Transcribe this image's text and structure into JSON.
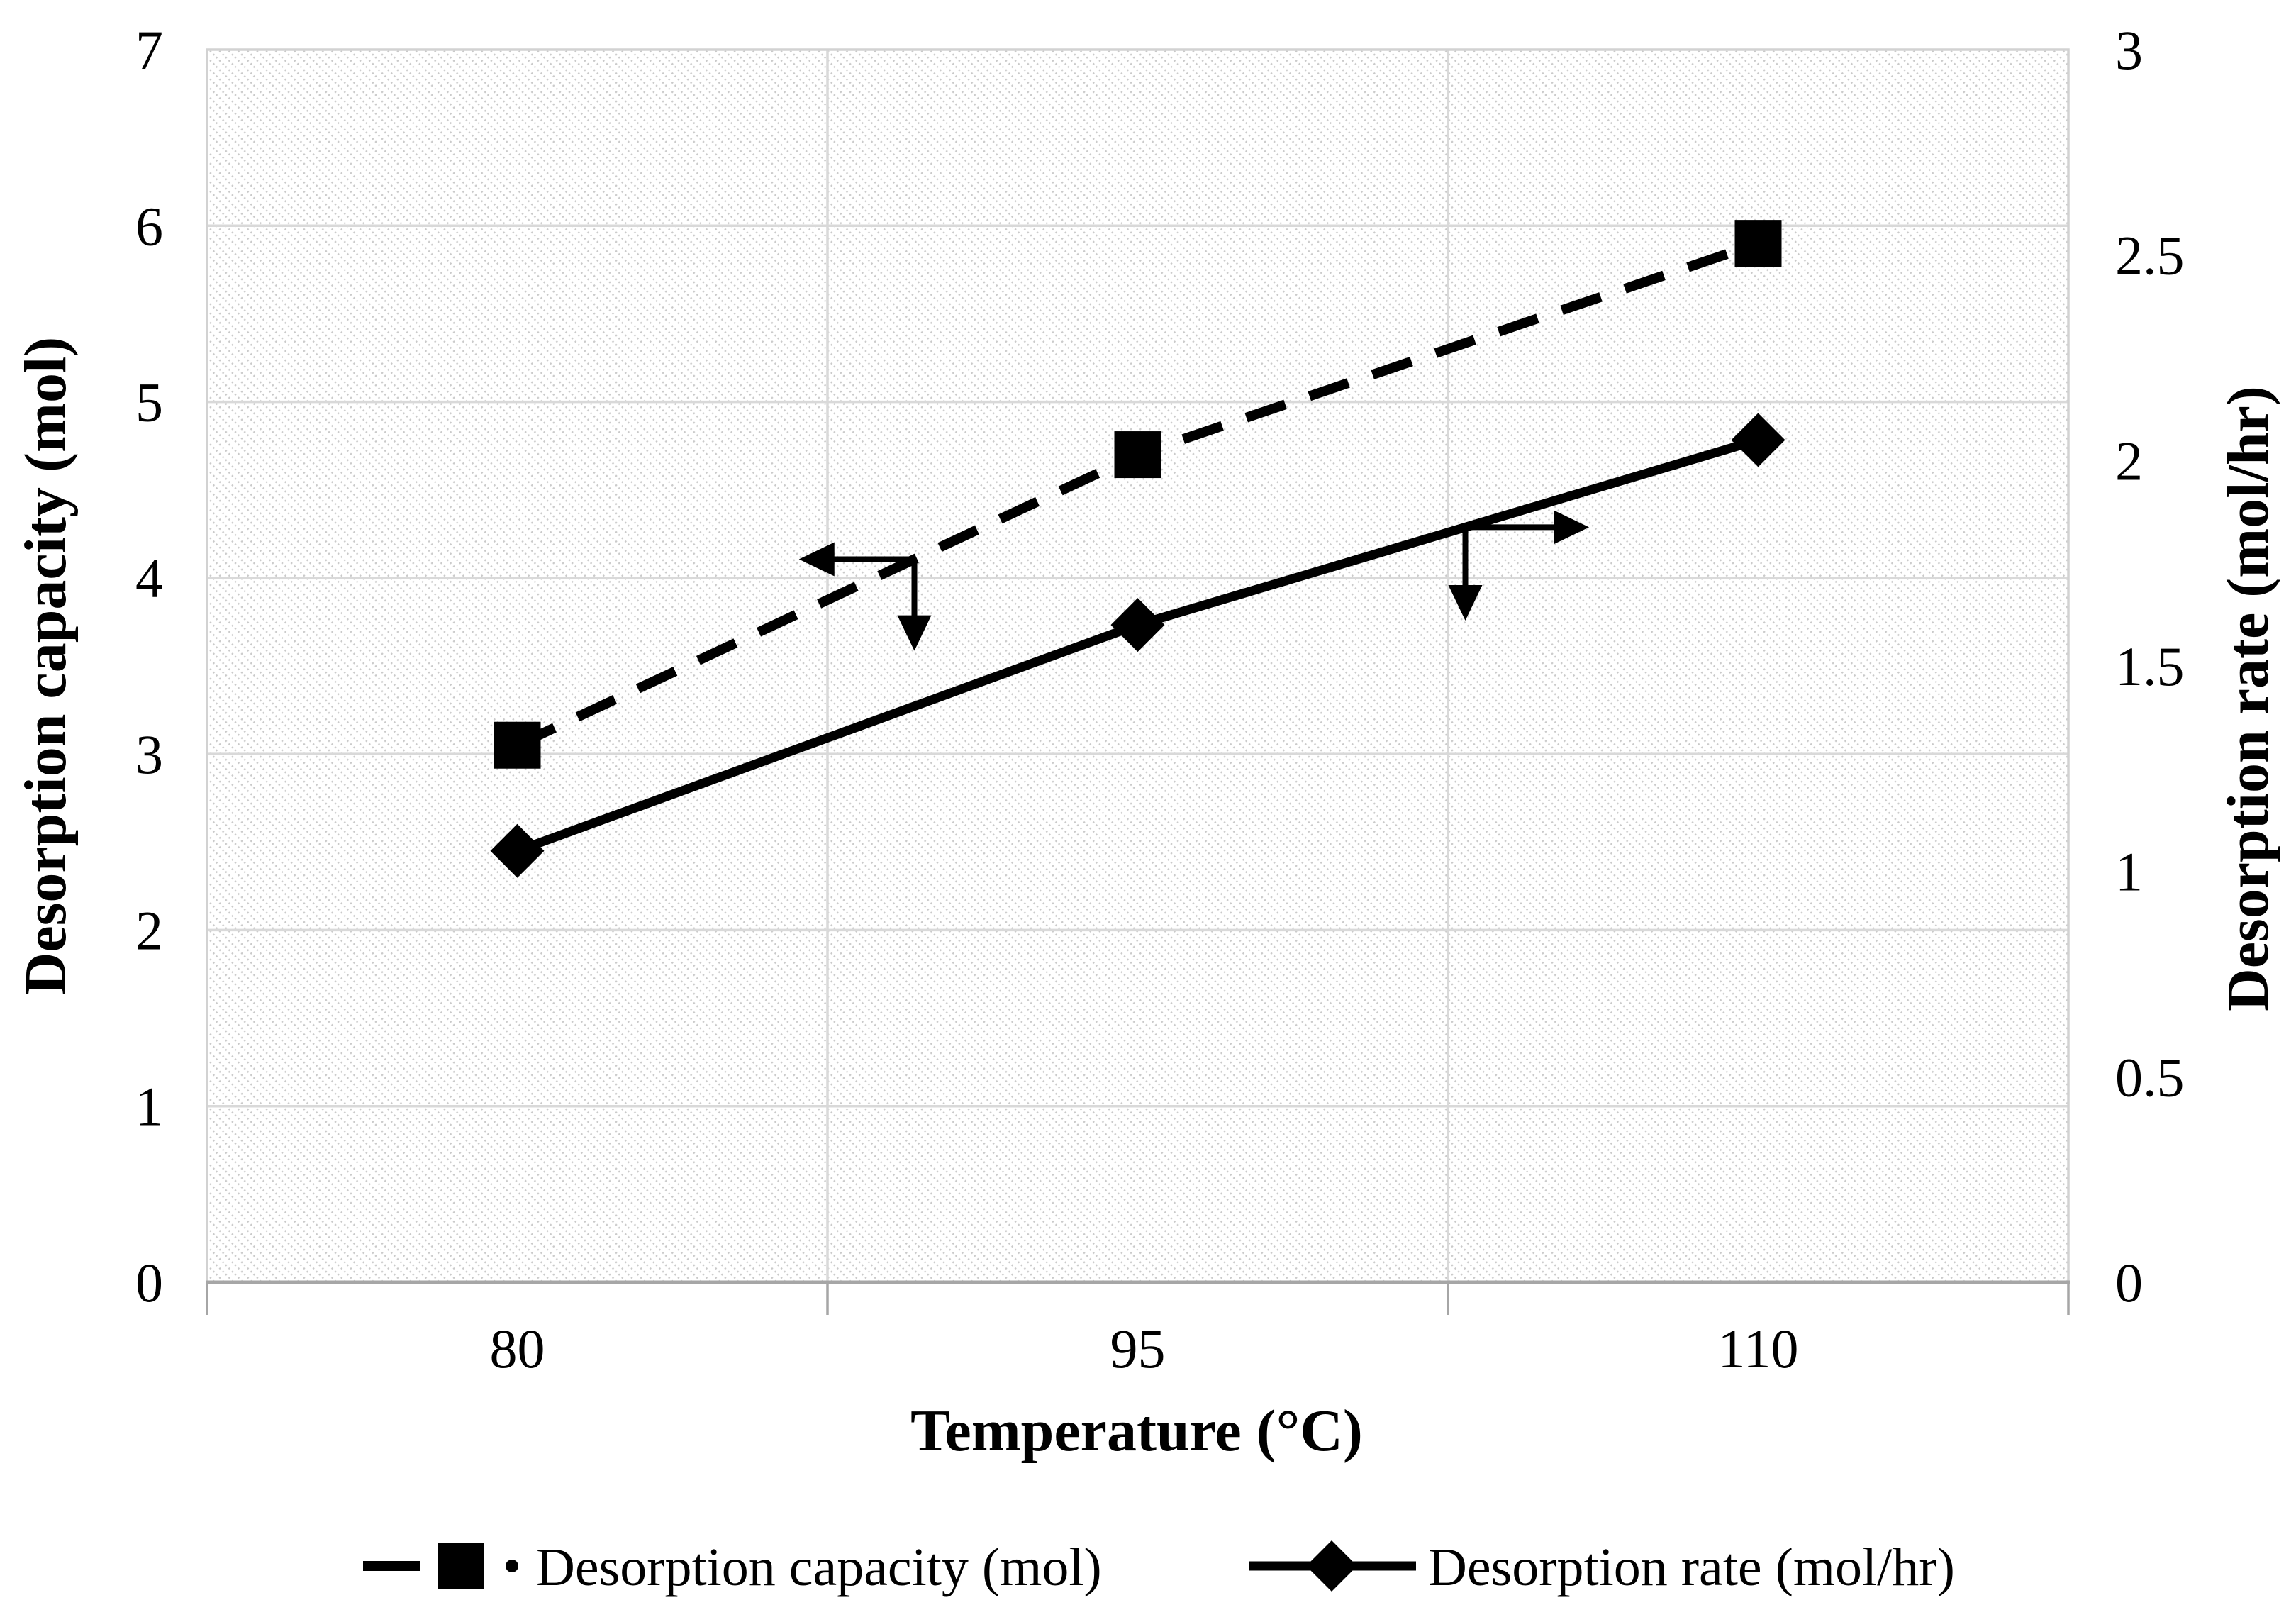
{
  "chart_data": {
    "type": "line",
    "title": "",
    "x_axis": {
      "label": "Temperature (°C)",
      "categories": [
        "80",
        "95",
        "110"
      ]
    },
    "left_axis": {
      "label": "Desorption capacity (mol)",
      "min": 0,
      "max": 7,
      "tick_step": 1,
      "tick_labels": [
        "0",
        "1",
        "2",
        "3",
        "4",
        "5",
        "6",
        "7"
      ]
    },
    "right_axis": {
      "label": "Desorption rate (mol/hr)",
      "min": 0,
      "max": 3,
      "tick_step": 0.5,
      "tick_labels": [
        "0",
        "0.5",
        "1",
        "1.5",
        "2",
        "2.5",
        "3"
      ]
    },
    "series": [
      {
        "name": "Desorption capacity (mol)",
        "axis": "left",
        "marker": "square",
        "line_style": "dashed",
        "color": "#000000",
        "x": [
          80,
          95,
          110
        ],
        "values": [
          3.05,
          4.7,
          5.9
        ]
      },
      {
        "name": "Desorption rate (mol/hr)",
        "axis": "right",
        "marker": "diamond",
        "line_style": "solid",
        "color": "#000000",
        "x": [
          80,
          95,
          110
        ],
        "values": [
          1.05,
          1.6,
          2.05
        ]
      }
    ],
    "annotations": [
      {
        "type": "axis-pointer-arrow",
        "series_index": 0,
        "points_to": "left-axis",
        "x_frac": 0.38,
        "h_len_frac": 0.062,
        "v_drop_axis_units": 0.52
      },
      {
        "type": "axis-pointer-arrow",
        "series_index": 1,
        "points_to": "right-axis",
        "x_frac": 0.676,
        "h_len_frac": 0.0665,
        "v_drop_axis_units": 0.53
      }
    ],
    "legend": {
      "position": "bottom",
      "items": [
        "Desorption capacity (mol)",
        "Desorption rate (mol/hr)"
      ]
    },
    "grid": {
      "horizontal": true,
      "vertical": true
    },
    "plot_background": "diagonal-hatch"
  },
  "colors": {
    "background": "#ffffff",
    "text": "#000000",
    "series": "#000000",
    "gridline": "#d9d9d9",
    "plot_border": "#d2d2d2",
    "axis_line": "#a6a6a6",
    "hatch": "#c9c9c9"
  }
}
